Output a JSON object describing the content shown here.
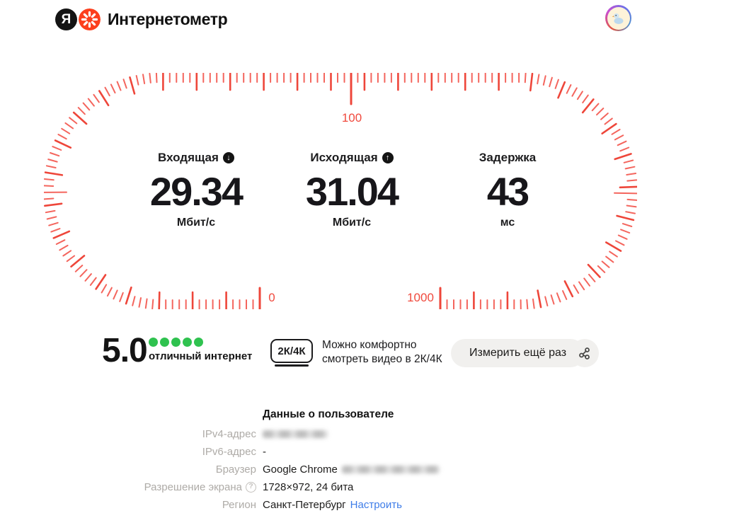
{
  "header": {
    "logo_letter": "Я",
    "brand": "Интернетометр"
  },
  "gauge": {
    "scale_labels": {
      "start": "0",
      "mid": "100",
      "end": "1000"
    },
    "colors": {
      "tick_minor": "#f4655d",
      "tick_major": "#ee463a",
      "label": "#f04a3e"
    },
    "metrics": [
      {
        "label": "Входящая",
        "icon": "download",
        "value": "29.34",
        "unit": "Мбит/с"
      },
      {
        "label": "Исходящая",
        "icon": "upload",
        "value": "31.04",
        "unit": "Мбит/с"
      },
      {
        "label": "Задержка",
        "icon": "none",
        "value": "43",
        "unit": "мс"
      }
    ]
  },
  "rating": {
    "score": "5.0",
    "dots": 5,
    "dot_color": "#2fc24f",
    "caption": "отличный интернет"
  },
  "quality": {
    "badge": "2К/4К",
    "line1": "Можно комфортно",
    "line2": "смотреть видео в 2К/4К"
  },
  "actions": {
    "measure_again": "Измерить ещё раз",
    "share": "share"
  },
  "user_data": {
    "title": "Данные о пользователе",
    "rows": [
      {
        "label": "IPv4-адрес",
        "value": ""
      },
      {
        "label": "IPv6-адрес",
        "value": "-"
      },
      {
        "label": "Браузер",
        "value": "Google Chrome"
      },
      {
        "label": "Разрешение экрана",
        "value": "1728×972, 24 бита"
      },
      {
        "label": "Регион",
        "value": "Санкт-Петербург",
        "link": "Настроить"
      }
    ],
    "help_glyph": "?"
  }
}
